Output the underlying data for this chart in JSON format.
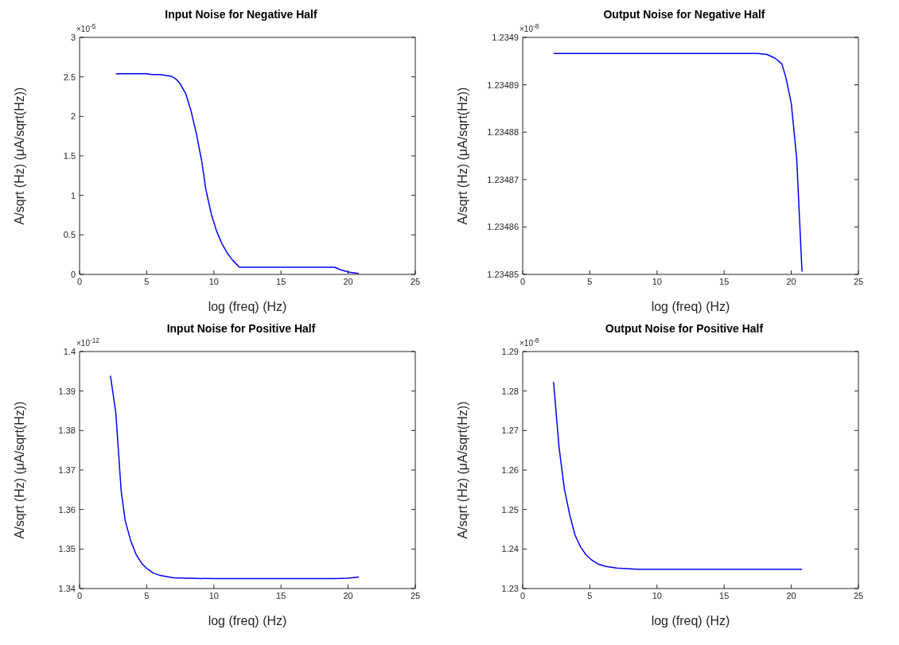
{
  "chart_data": [
    {
      "type": "line",
      "title": "Input Noise for Negative Half",
      "xlabel": "log (freq) (Hz)",
      "ylabel": "A/sqrt (Hz) (μA/sqrt(Hz))",
      "annotations": [
        "×10$^{-5}$"
      ],
      "xlim": [
        0,
        25
      ],
      "xticks": [
        0,
        5,
        10,
        15,
        20,
        25
      ],
      "ylim": [
        0,
        3
      ],
      "yticks": [
        0,
        0.5,
        1,
        1.5,
        2,
        2.5,
        3
      ],
      "grid": false,
      "legend": false,
      "series": [
        {
          "color": "#0000ff",
          "x": [
            2.7,
            5,
            5.4,
            6,
            6.8,
            7.2,
            7.5,
            7.9,
            8.3,
            8.7,
            9.1,
            9.4,
            9.8,
            10.2,
            10.6,
            11,
            11.4,
            11.9,
            13,
            19,
            19.4,
            20,
            20.8
          ],
          "values": [
            2.54,
            2.54,
            2.53,
            2.53,
            2.51,
            2.47,
            2.41,
            2.29,
            2.07,
            1.78,
            1.43,
            1.08,
            0.77,
            0.55,
            0.39,
            0.27,
            0.18,
            0.09,
            0.09,
            0.09,
            0.06,
            0.03,
            0.01
          ]
        }
      ]
    },
    {
      "type": "line",
      "title": "Output Noise for Negative Half",
      "xlabel": "log (freq) (Hz)",
      "ylabel": "A/sqrt (Hz) (μA/sqrt(Hz))",
      "annotations": [
        "×10$^{-8}$"
      ],
      "xlim": [
        0,
        25
      ],
      "xticks": [
        0,
        5,
        10,
        15,
        20,
        25
      ],
      "ylim": [
        1.23485,
        1.2349
      ],
      "yticks": [
        1.23485,
        1.23486,
        1.23487,
        1.23488,
        1.23489,
        1.2349
      ],
      "grid": false,
      "legend": false,
      "series": [
        {
          "color": "#0000ff",
          "x": [
            2.3,
            17.5,
            18.2,
            18.8,
            19.3,
            19.6,
            20,
            20.4,
            20.8
          ],
          "values": [
            1.2348966,
            1.2348966,
            1.2348964,
            1.2348956,
            1.2348944,
            1.2348915,
            1.2348861,
            1.2348746,
            1.2348506
          ]
        }
      ]
    },
    {
      "type": "line",
      "title": "Input Noise for Positive Half",
      "xlabel": "log (freq) (Hz)",
      "ylabel": "A/sqrt (Hz) (μA/sqrt(Hz))",
      "annotations": [
        "×10$^{-12}$"
      ],
      "xlim": [
        0,
        25
      ],
      "xticks": [
        0,
        5,
        10,
        15,
        20,
        25
      ],
      "ylim": [
        1.34,
        1.4
      ],
      "yticks": [
        1.34,
        1.35,
        1.36,
        1.37,
        1.38,
        1.39,
        1.4
      ],
      "grid": false,
      "legend": false,
      "series": [
        {
          "color": "#0000ff",
          "x": [
            2.3,
            2.7,
            3.1,
            3.4,
            3.8,
            4.2,
            4.6,
            5,
            5.5,
            6,
            7,
            8,
            10,
            19,
            20,
            20.8
          ],
          "values": [
            1.3939,
            1.3845,
            1.3647,
            1.3572,
            1.3522,
            1.3487,
            1.3465,
            1.3451,
            1.3439,
            1.3433,
            1.3427,
            1.3426,
            1.3425,
            1.3425,
            1.3426,
            1.3429
          ]
        }
      ]
    },
    {
      "type": "line",
      "title": "Output Noise for Positive Half",
      "xlabel": "log (freq) (Hz)",
      "ylabel": "A/sqrt (Hz) (μA/sqrt(Hz))",
      "annotations": [
        "×10$^{-8}$"
      ],
      "xlim": [
        0,
        25
      ],
      "xticks": [
        0,
        5,
        10,
        15,
        20,
        25
      ],
      "ylim": [
        1.23,
        1.29
      ],
      "yticks": [
        1.23,
        1.24,
        1.25,
        1.26,
        1.27,
        1.28,
        1.29
      ],
      "grid": false,
      "legend": false,
      "series": [
        {
          "color": "#0000ff",
          "x": [
            2.3,
            2.7,
            3.1,
            3.5,
            3.9,
            4.3,
            4.7,
            5.1,
            5.6,
            6.2,
            7,
            8.5,
            20.8
          ],
          "values": [
            1.2823,
            1.266,
            1.2553,
            1.2487,
            1.2435,
            1.2406,
            1.2386,
            1.2373,
            1.2362,
            1.2356,
            1.2352,
            1.2349,
            1.2349
          ]
        }
      ]
    }
  ]
}
